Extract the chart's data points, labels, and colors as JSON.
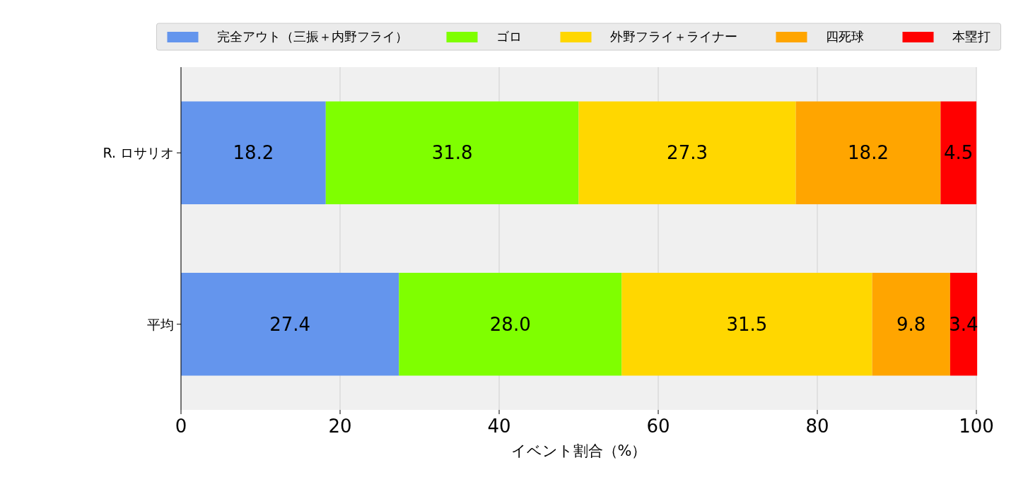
{
  "chart_data": {
    "type": "bar",
    "orientation": "horizontal",
    "stacked": true,
    "categories": [
      "R. ロサリオ",
      "平均"
    ],
    "series": [
      {
        "name": "完全アウト（三振＋内野フライ）",
        "color": "#6495ed",
        "values": [
          18.2,
          27.4
        ],
        "value_labels": [
          "18.2",
          "27.4"
        ]
      },
      {
        "name": "ゴロ",
        "color": "#7fff00",
        "values": [
          31.8,
          28.0
        ],
        "value_labels": [
          "31.8",
          "28.0"
        ]
      },
      {
        "name": "外野フライ＋ライナー",
        "color": "#ffd700",
        "values": [
          27.3,
          31.5
        ],
        "value_labels": [
          "27.3",
          "31.5"
        ]
      },
      {
        "name": "四死球",
        "color": "#ffa500",
        "values": [
          18.2,
          9.8
        ],
        "value_labels": [
          "18.2",
          "9.8"
        ]
      },
      {
        "name": "本塁打",
        "color": "#ff0000",
        "values": [
          4.5,
          3.4
        ],
        "value_labels": [
          "4.5",
          "3.4"
        ]
      }
    ],
    "xlim": [
      0,
      100
    ],
    "xticks": [
      0,
      20,
      40,
      60,
      80,
      100
    ],
    "xlabel": "イベント割合（%）",
    "grid": "x",
    "legend": "top"
  }
}
